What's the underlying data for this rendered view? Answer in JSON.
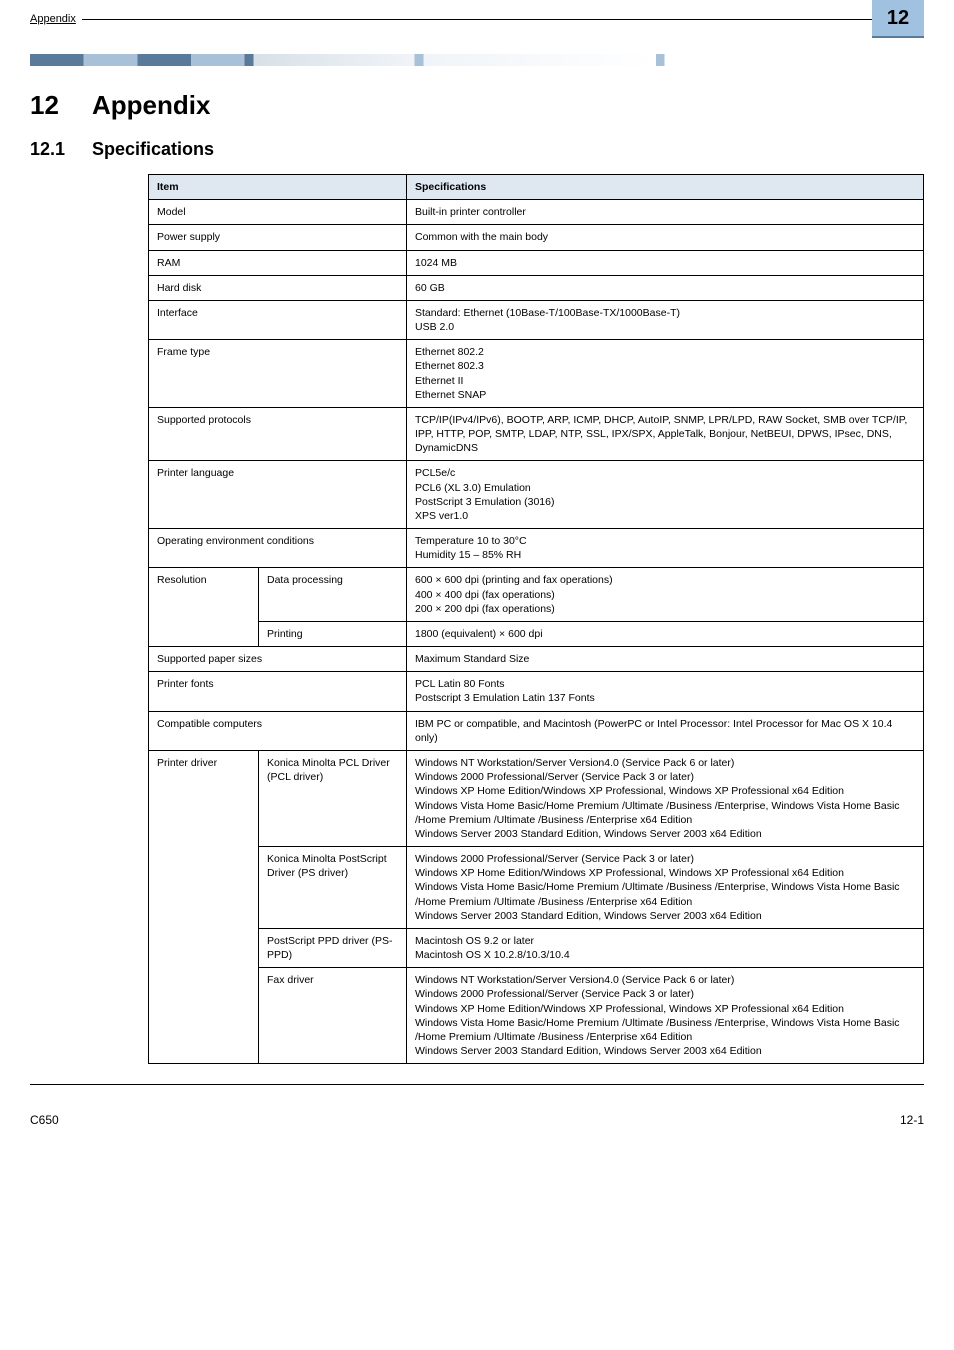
{
  "header": {
    "breadcrumb": "Appendix",
    "chapter_number": "12"
  },
  "h1": {
    "num": "12",
    "title": "Appendix"
  },
  "h2": {
    "num": "12.1",
    "title": "Specifications"
  },
  "table": {
    "header": {
      "c0": "Item",
      "c1": "Specifications"
    },
    "rows": [
      {
        "c0": "Model",
        "c1": "Built-in printer controller"
      },
      {
        "c0": "Power supply",
        "c1": "Common with the main body"
      },
      {
        "c0": "RAM",
        "c1": "1024 MB"
      },
      {
        "c0": "Hard disk",
        "c1": "60 GB"
      },
      {
        "c0": "Interface",
        "c1": "Standard: Ethernet (10Base-T/100Base-TX/1000Base-T)\nUSB 2.0"
      },
      {
        "c0": "Frame type",
        "c1": "Ethernet 802.2\nEthernet 802.3\nEthernet II\nEthernet SNAP"
      },
      {
        "c0": "Supported protocols",
        "c1": "TCP/IP(IPv4/IPv6), BOOTP, ARP, ICMP, DHCP, AutoIP, SNMP, LPR/LPD, RAW Socket, SMB over TCP/IP, IPP, HTTP, POP, SMTP, LDAP, NTP, SSL, IPX/SPX, AppleTalk, Bonjour, NetBEUI, DPWS, IPsec, DNS, DynamicDNS"
      },
      {
        "c0": "Printer language",
        "c1": "PCL5e/c\nPCL6 (XL 3.0) Emulation\nPostScript 3 Emulation (3016)\nXPS ver1.0"
      },
      {
        "c0": "Operating environment conditions",
        "c1": "Temperature 10 to 30°C\nHumidity 15 – 85% RH"
      }
    ],
    "resolution": {
      "label": "Resolution",
      "r1": {
        "mid": "Data processing",
        "right": "600 × 600 dpi (printing and fax operations)\n400 × 400 dpi (fax operations)\n200 × 200 dpi (fax operations)"
      },
      "r2": {
        "mid": "Printing",
        "right": "1800 (equivalent) × 600 dpi"
      }
    },
    "rows2": [
      {
        "c0": "Supported paper sizes",
        "c1": "Maximum Standard Size"
      },
      {
        "c0": "Printer fonts",
        "c1": "PCL Latin 80 Fonts\nPostscript 3 Emulation Latin 137 Fonts"
      },
      {
        "c0": "Compatible computers",
        "c1": "IBM PC or compatible, and Macintosh (PowerPC or Intel Processor: Intel Processor for Mac OS X 10.4 only)"
      }
    ],
    "driver": {
      "label": "Printer driver",
      "r1": {
        "mid": "Konica Minolta PCL Driver (PCL driver)",
        "right": "Windows NT Workstation/Server Version4.0 (Service Pack 6 or later)\nWindows 2000 Professional/Server (Service Pack 3 or later)\nWindows XP Home Edition/Windows XP Professional, Windows XP Professional x64 Edition\nWindows Vista Home Basic/Home Premium /Ultimate /Business /Enterprise, Windows Vista Home Basic /Home Premium /Ultimate /Business /Enterprise x64 Edition\nWindows Server 2003 Standard Edition, Windows Server 2003 x64 Edition"
      },
      "r2": {
        "mid": "Konica Minolta PostScript Driver (PS driver)",
        "right": "Windows 2000 Professional/Server (Service Pack 3 or later)\nWindows XP Home Edition/Windows XP Professional, Windows XP Professional x64 Edition\nWindows Vista Home Basic/Home Premium /Ultimate /Business /Enterprise, Windows Vista Home Basic /Home Premium /Ultimate /Business /Enterprise x64 Edition\nWindows Server 2003 Standard Edition, Windows Server 2003 x64 Edition"
      },
      "r3": {
        "mid": "PostScript PPD driver (PS-PPD)",
        "right": "Macintosh OS 9.2 or later\nMacintosh OS X 10.2.8/10.3/10.4"
      },
      "r4": {
        "mid": "Fax driver",
        "right": "Windows NT Workstation/Server Version4.0 (Service Pack 6 or later)\nWindows 2000 Professional/Server (Service Pack 3 or later)\nWindows XP Home Edition/Windows XP Professional, Windows XP Professional x64 Edition\nWindows Vista Home Basic/Home Premium /Ultimate /Business /Enterprise, Windows Vista Home Basic /Home Premium /Ultimate /Business /Enterprise x64 Edition\nWindows Server 2003 Standard Edition, Windows Server 2003 x64 Edition"
      }
    }
  },
  "footer": {
    "left": "C650",
    "right": "12-1"
  },
  "colors": {
    "header_box_bg": "#a0c1e0",
    "table_header_bg": "#dfe7f0",
    "border": "#000000"
  }
}
